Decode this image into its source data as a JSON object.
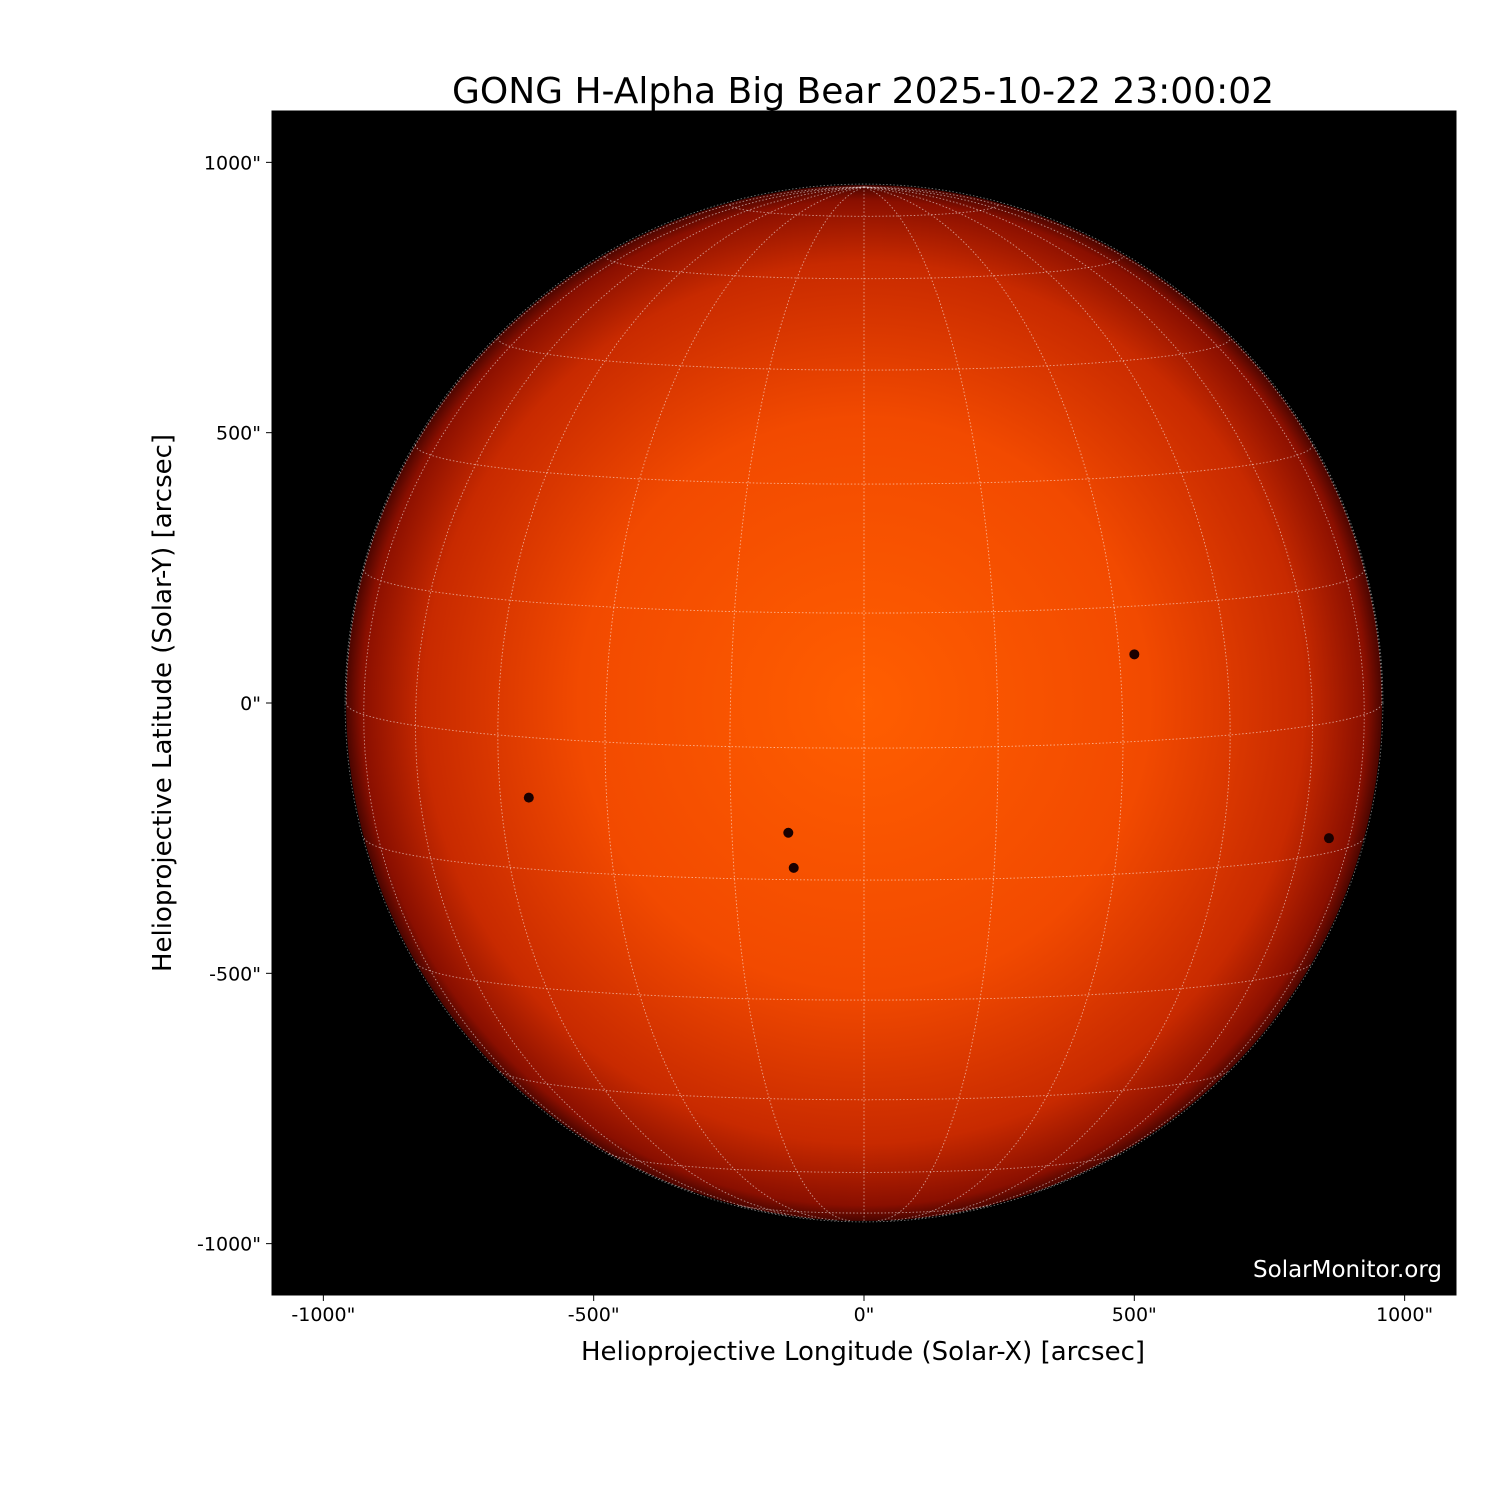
{
  "title": "GONG H-Alpha Big Bear 2025-10-22 23:00:02",
  "watermark": "SolarMonitor.org",
  "chart_data": {
    "type": "image",
    "xlabel": "Helioprojective Longitude (Solar-X) [arcsec]",
    "ylabel": "Helioprojective Latitude (Solar-Y) [arcsec]",
    "xlim": [
      -1095,
      1095
    ],
    "ylim": [
      -1095,
      1095
    ],
    "xticks": [
      {
        "value": -1000,
        "label": "-1000\""
      },
      {
        "value": -500,
        "label": "-500\""
      },
      {
        "value": 0,
        "label": "0\""
      },
      {
        "value": 500,
        "label": "500\""
      },
      {
        "value": 1000,
        "label": "1000\""
      }
    ],
    "yticks": [
      {
        "value": 1000,
        "label": "1000\""
      },
      {
        "value": 500,
        "label": "500\""
      },
      {
        "value": 0,
        "label": "0\""
      },
      {
        "value": -500,
        "label": "-500\""
      },
      {
        "value": -1000,
        "label": "-1000\""
      }
    ],
    "solar_radius_arcsec": 958,
    "grid": true,
    "grid_spacing_deg": 15,
    "colors": {
      "background": "#000000",
      "disk_center": "#ff5a00",
      "disk_limb": "#7a0a00",
      "grid": "#ffffff"
    },
    "dark_features_arcsec": [
      {
        "x": 500,
        "y": 90
      },
      {
        "x": -140,
        "y": -240
      },
      {
        "x": -130,
        "y": -305
      },
      {
        "x": -620,
        "y": -175
      },
      {
        "x": 860,
        "y": -250
      }
    ]
  }
}
